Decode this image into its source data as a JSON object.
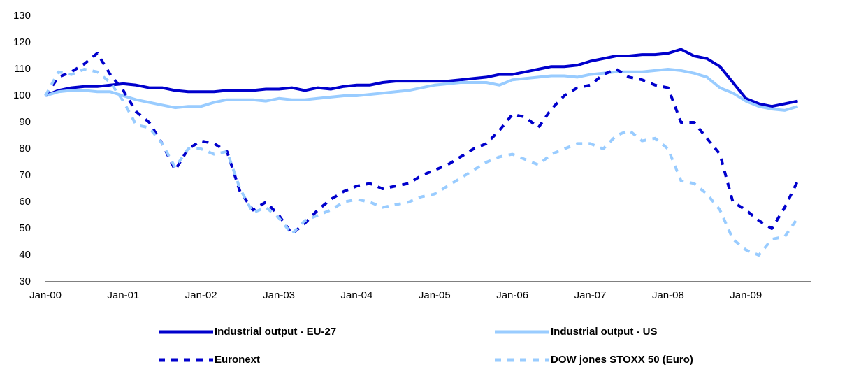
{
  "chart_data": {
    "type": "line",
    "categories": [
      "Jan-00",
      null,
      null,
      null,
      null,
      null,
      "Jan-01",
      null,
      null,
      null,
      null,
      null,
      "Jan-02",
      null,
      null,
      null,
      null,
      null,
      "Jan-03",
      null,
      null,
      null,
      null,
      null,
      "Jan-04",
      null,
      null,
      null,
      null,
      null,
      "Jan-05",
      null,
      null,
      null,
      null,
      null,
      "Jan-06",
      null,
      null,
      null,
      null,
      null,
      "Jan-07",
      null,
      null,
      null,
      null,
      null,
      "Jan-08",
      null,
      null,
      null,
      null,
      null,
      "Jan-09",
      null,
      null,
      null,
      null
    ],
    "ylim": [
      30,
      130
    ],
    "yticks": [
      30,
      40,
      50,
      60,
      70,
      80,
      90,
      100,
      110,
      120,
      130
    ],
    "grid": false,
    "legend": "bottom",
    "series": [
      {
        "name": "Industrial output - EU-27",
        "color": "#0000cc",
        "style": "solid",
        "values": [
          100,
          102,
          103,
          103.5,
          103.5,
          104,
          104.5,
          104,
          103,
          103,
          102,
          101.5,
          101.5,
          101.5,
          102,
          102,
          102,
          102.5,
          102.5,
          103,
          102,
          103,
          102.5,
          103.5,
          104,
          104,
          105,
          105.5,
          105.5,
          105.5,
          105.5,
          105.5,
          106,
          106.5,
          107,
          108,
          108,
          109,
          110,
          111,
          111,
          111.5,
          113,
          114,
          115,
          115,
          115.5,
          115.5,
          116,
          117.5,
          115,
          114,
          111,
          105,
          99,
          97,
          96,
          97,
          98
        ]
      },
      {
        "name": "Industrial output - US",
        "color": "#99ccff",
        "style": "solid",
        "values": [
          100,
          101.5,
          102,
          102,
          101.5,
          101.5,
          100,
          98.5,
          97.5,
          96.5,
          95.5,
          96,
          96,
          97.5,
          98.5,
          98.5,
          98.5,
          98,
          99,
          98.5,
          98.5,
          99,
          99.5,
          100,
          100,
          100.5,
          101,
          101.5,
          102,
          103,
          104,
          104.5,
          105,
          105,
          105,
          104,
          106,
          106.5,
          107,
          107.5,
          107.5,
          107,
          108,
          108.5,
          109,
          109,
          109,
          109.5,
          110,
          109.5,
          108.5,
          107,
          103,
          101,
          98,
          96,
          95,
          94.5,
          96
        ]
      },
      {
        "name": "Euronext",
        "color": "#0000cc",
        "style": "dashed",
        "values": [
          100,
          107,
          109,
          112,
          116,
          108,
          102,
          94,
          90,
          82,
          72,
          80,
          83,
          82,
          79,
          64,
          57,
          60,
          55,
          48,
          52,
          57,
          61,
          64,
          66,
          67,
          65,
          66,
          67,
          70,
          72,
          74,
          77,
          80,
          82,
          87,
          93,
          92,
          88,
          95,
          100,
          103,
          104,
          108,
          110,
          107,
          106,
          104,
          103,
          90,
          90,
          84,
          78,
          60,
          57,
          53,
          50,
          58,
          68
        ]
      },
      {
        "name": "DOW jones STOXX 50 (Euro)",
        "color": "#99ccff",
        "style": "dashed",
        "values": [
          100,
          109,
          108,
          110,
          109,
          105,
          98,
          89,
          88,
          82,
          73,
          80,
          80,
          78,
          79,
          65,
          56,
          58,
          54,
          48,
          53,
          55,
          57,
          60,
          61,
          60,
          58,
          59,
          60,
          62,
          63,
          66,
          69,
          72,
          75,
          77,
          78,
          76,
          74,
          78,
          80,
          82,
          82,
          80,
          85,
          87,
          83,
          84,
          80,
          68,
          67,
          63,
          57,
          46,
          42,
          40,
          46,
          47,
          54
        ]
      }
    ]
  }
}
